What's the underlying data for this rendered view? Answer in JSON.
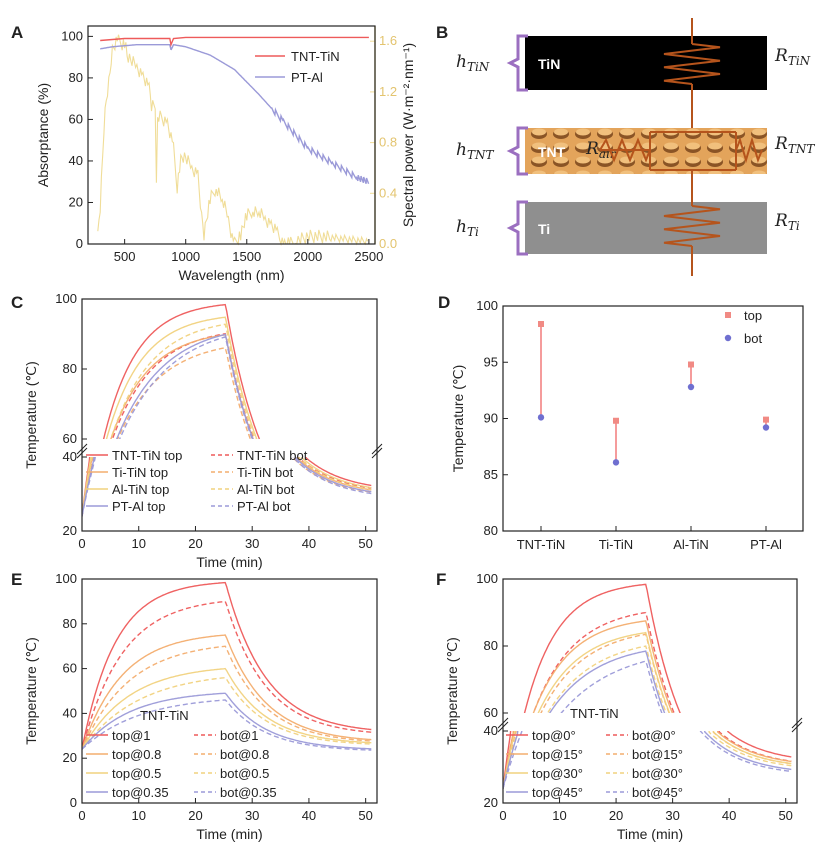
{
  "colors": {
    "red": "#ee5a5a",
    "orange": "#f3ad6e",
    "yellow": "#f1d27e",
    "purple": "#9b9ad8",
    "gold": "#f0dd98",
    "pink": "#f2bdbd"
  },
  "panelA": {
    "label": "A",
    "chart_data": {
      "type": "line",
      "xlabel": "Wavelength (nm)",
      "ylabel": "Absorptance (%)",
      "y2label": "Spectral power (W·m⁻²·nm⁻¹)",
      "xlim": [
        200,
        2550
      ],
      "ylim": [
        0,
        105
      ],
      "y2lim": [
        0,
        1.72
      ],
      "xticks": [
        500,
        1000,
        1500,
        2000,
        2500
      ],
      "yticks": [
        0,
        20,
        40,
        60,
        80,
        100
      ],
      "y2ticks": [
        0.0,
        0.4,
        0.8,
        1.2,
        1.6
      ],
      "legend": [
        "TNT-TiN",
        "PT-Al"
      ],
      "series": [
        {
          "name": "TNT-TiN",
          "x": [
            300,
            500,
            700,
            870,
            880,
            900,
            1000,
            1500,
            2000,
            2500
          ],
          "y": [
            98,
            99,
            99,
            99,
            96,
            99,
            99.5,
            99.5,
            99.5,
            99.5
          ]
        },
        {
          "name": "PT-Al",
          "x": [
            300,
            400,
            600,
            800,
            870,
            880,
            900,
            1000,
            1200,
            1400,
            1600,
            1800,
            2000,
            2200,
            2400,
            2500
          ],
          "y": [
            94,
            95,
            96,
            96,
            96,
            93.5,
            96,
            95,
            91,
            84,
            72,
            59,
            46,
            39,
            32,
            30
          ]
        },
        {
          "name": "Spectral power",
          "axis": "right",
          "x": [
            280,
            300,
            330,
            350,
            380,
            400,
            430,
            450,
            480,
            500,
            520,
            550,
            600,
            650,
            700,
            720,
            750,
            760,
            770,
            800,
            850,
            900,
            930,
            950,
            970,
            1000,
            1050,
            1100,
            1130,
            1150,
            1200,
            1250,
            1300,
            1350,
            1380,
            1400,
            1450,
            1500,
            1550,
            1600,
            1650,
            1700,
            1750,
            1800,
            1850,
            1900,
            2000,
            2100,
            2200,
            2300,
            2400,
            2500
          ],
          "y": [
            0.05,
            0.3,
            0.9,
            1.15,
            1.35,
            1.55,
            1.6,
            1.6,
            1.58,
            1.58,
            1.5,
            1.45,
            1.4,
            1.32,
            1.22,
            1.1,
            1.1,
            0.5,
            1.0,
            1.0,
            0.95,
            0.75,
            0.45,
            0.6,
            0.7,
            0.68,
            0.6,
            0.55,
            0.2,
            0.08,
            0.35,
            0.45,
            0.35,
            0.2,
            0.05,
            0.0,
            0.08,
            0.22,
            0.27,
            0.25,
            0.2,
            0.15,
            0.08,
            0.0,
            0.0,
            0.02,
            0.06,
            0.06,
            0.05,
            0.04,
            0.03,
            0.02
          ]
        }
      ]
    }
  },
  "panelB": {
    "label": "B",
    "layers": [
      {
        "name": "TiN",
        "h": "h",
        "hsub": "TiN",
        "r": "R",
        "rsub": "TiN"
      },
      {
        "name": "TNT",
        "h": "h",
        "hsub": "TNT",
        "r": "R",
        "rsub": "TNT",
        "air": "R",
        "airsub": "air"
      },
      {
        "name": "Ti",
        "h": "h",
        "hsub": "Ti",
        "r": "R",
        "rsub": "Ti"
      }
    ]
  },
  "panelC": {
    "label": "C",
    "chart_data": {
      "type": "line",
      "xlabel": "Time (min)",
      "ylabel": "Temperature (℃)",
      "xlim": [
        0,
        52
      ],
      "xticks": [
        0,
        10,
        20,
        30,
        40,
        50
      ],
      "yticks": [
        20,
        40,
        60,
        80,
        100
      ],
      "legend": [
        "TNT-TiN top",
        "TNT-TiN bot",
        "Ti-TiN top",
        "Ti-TiN bot",
        "Al-TiN top",
        "Al-TiN bot",
        "PT-Al top",
        "PT-Al bot"
      ],
      "series": [
        {
          "name": "TNT-TiN top",
          "style": "solid",
          "color": "red",
          "t0": 24,
          "peak": 98.4,
          "k": 0.17,
          "end": 30.5
        },
        {
          "name": "TNT-TiN bot",
          "style": "dash",
          "color": "red",
          "t0": 24,
          "peak": 90.1,
          "k": 0.14,
          "end": 30
        },
        {
          "name": "Ti-TiN top",
          "style": "solid",
          "color": "orange",
          "t0": 24,
          "peak": 89.8,
          "k": 0.15,
          "end": 29.5
        },
        {
          "name": "Ti-TiN bot",
          "style": "dash",
          "color": "orange",
          "t0": 24,
          "peak": 86.1,
          "k": 0.13,
          "end": 29
        },
        {
          "name": "Al-TiN top",
          "style": "solid",
          "color": "yellow",
          "t0": 24,
          "peak": 94.8,
          "k": 0.16,
          "end": 30
        },
        {
          "name": "Al-TiN bot",
          "style": "dash",
          "color": "yellow",
          "t0": 24,
          "peak": 92.8,
          "k": 0.14,
          "end": 29.5
        },
        {
          "name": "PT-Al top",
          "style": "solid",
          "color": "purple",
          "t0": 24,
          "peak": 89.9,
          "k": 0.12,
          "end": 29
        },
        {
          "name": "PT-Al bot",
          "style": "dash",
          "color": "purple",
          "t0": 24,
          "peak": 89.2,
          "k": 0.11,
          "end": 28.5
        }
      ]
    }
  },
  "panelD": {
    "label": "D",
    "chart_data": {
      "type": "scatter",
      "ylabel": "Temperature (℃)",
      "ylim": [
        80,
        100
      ],
      "yticks": [
        80,
        85,
        90,
        95,
        100
      ],
      "categories": [
        "TNT-TiN",
        "Ti-TiN",
        "Al-TiN",
        "PT-Al"
      ],
      "series": [
        {
          "name": "top",
          "values": [
            98.4,
            89.8,
            94.8,
            89.9
          ]
        },
        {
          "name": "bot",
          "values": [
            90.1,
            86.1,
            92.8,
            89.2
          ]
        }
      ],
      "legend": [
        "top",
        "bot"
      ]
    }
  },
  "panelE": {
    "label": "E",
    "chart_data": {
      "type": "line",
      "title": "TNT-TiN",
      "xlabel": "Time (min)",
      "ylabel": "Temperature (℃)",
      "xlim": [
        0,
        52
      ],
      "ylim": [
        0,
        100
      ],
      "xticks": [
        0,
        10,
        20,
        30,
        40,
        50
      ],
      "yticks": [
        0,
        20,
        40,
        60,
        80,
        100
      ],
      "legend": [
        "top@1",
        "bot@1",
        "top@0.8",
        "bot@0.8",
        "top@0.5",
        "bot@0.5",
        "top@0.35",
        "bot@0.35"
      ],
      "series": [
        {
          "name": "top@1",
          "style": "solid",
          "color": "red",
          "t0": 24,
          "peak": 98.4,
          "k": 0.17,
          "end": 31
        },
        {
          "name": "bot@1",
          "style": "dash",
          "color": "red",
          "t0": 24,
          "peak": 90,
          "k": 0.14,
          "end": 30
        },
        {
          "name": "top@0.8",
          "style": "solid",
          "color": "orange",
          "t0": 24,
          "peak": 75,
          "k": 0.14,
          "end": 27
        },
        {
          "name": "bot@0.8",
          "style": "dash",
          "color": "orange",
          "t0": 24,
          "peak": 70,
          "k": 0.12,
          "end": 26.5
        },
        {
          "name": "top@0.5",
          "style": "solid",
          "color": "yellow",
          "t0": 24,
          "peak": 60,
          "k": 0.12,
          "end": 26
        },
        {
          "name": "bot@0.5",
          "style": "dash",
          "color": "yellow",
          "t0": 24,
          "peak": 56,
          "k": 0.1,
          "end": 25.5
        },
        {
          "name": "top@0.35",
          "style": "solid",
          "color": "purple",
          "t0": 24,
          "peak": 49,
          "k": 0.12,
          "end": 23.5
        },
        {
          "name": "bot@0.35",
          "style": "dash",
          "color": "purple",
          "t0": 24,
          "peak": 46,
          "k": 0.1,
          "end": 23
        }
      ]
    }
  },
  "panelF": {
    "label": "F",
    "chart_data": {
      "type": "line",
      "title": "TNT-TiN",
      "xlabel": "Time (min)",
      "ylabel": "Temperature (℃)",
      "xlim": [
        0,
        52
      ],
      "xticks": [
        0,
        10,
        20,
        30,
        40,
        50
      ],
      "yticks": [
        20,
        40,
        60,
        80,
        100
      ],
      "legend": [
        "top@0°",
        "bot@0°",
        "top@15°",
        "bot@15°",
        "top@30°",
        "bot@30°",
        "top@45°",
        "bot@45°"
      ],
      "series": [
        {
          "name": "top@0°",
          "style": "solid",
          "color": "red",
          "t0": 24,
          "peak": 98.4,
          "k": 0.17,
          "end": 31
        },
        {
          "name": "bot@0°",
          "style": "dash",
          "color": "red",
          "t0": 24,
          "peak": 90,
          "k": 0.14,
          "end": 30
        },
        {
          "name": "top@15°",
          "style": "solid",
          "color": "orange",
          "t0": 24,
          "peak": 87.5,
          "k": 0.15,
          "end": 30
        },
        {
          "name": "bot@15°",
          "style": "dash",
          "color": "orange",
          "t0": 24,
          "peak": 83.5,
          "k": 0.13,
          "end": 29.5
        },
        {
          "name": "top@30°",
          "style": "solid",
          "color": "yellow",
          "t0": 24,
          "peak": 84,
          "k": 0.14,
          "end": 29.5
        },
        {
          "name": "bot@30°",
          "style": "dash",
          "color": "yellow",
          "t0": 24,
          "peak": 80,
          "k": 0.12,
          "end": 29
        },
        {
          "name": "top@45°",
          "style": "solid",
          "color": "purple",
          "t0": 24,
          "peak": 78.5,
          "k": 0.12,
          "end": 28
        },
        {
          "name": "bot@45°",
          "style": "dash",
          "color": "purple",
          "t0": 24,
          "peak": 75.5,
          "k": 0.1,
          "end": 27.5
        }
      ]
    }
  }
}
